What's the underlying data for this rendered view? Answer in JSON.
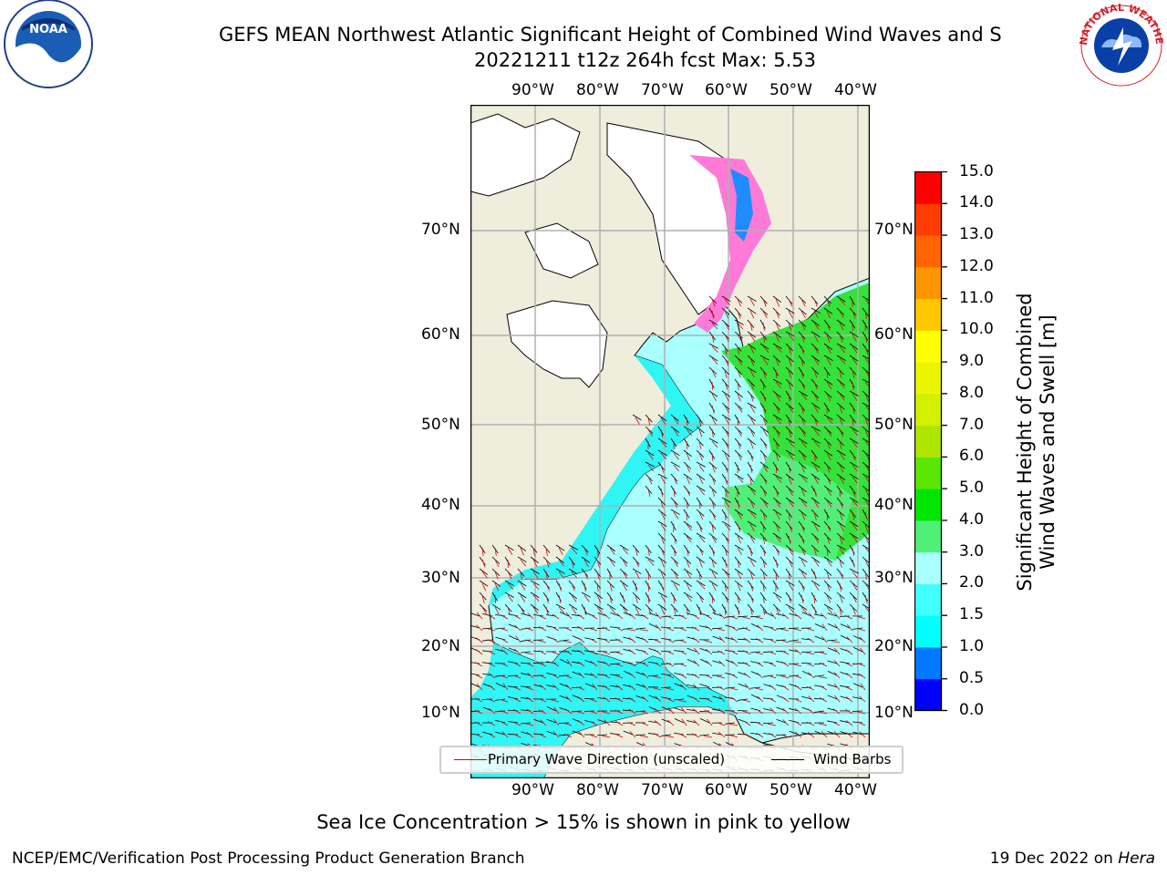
{
  "title": {
    "line1": "GEFS MEAN Northwest Atlantic Significant Height of Combined Wind Waves and S",
    "line2": "20221211 t12z 264h fcst   Max: 5.53"
  },
  "map": {
    "lon_ticks": [
      "90°W",
      "80°W",
      "70°W",
      "60°W",
      "50°W",
      "40°W"
    ],
    "lat_ticks": [
      "70°N",
      "60°N",
      "50°N",
      "40°N",
      "30°N",
      "20°N",
      "10°N"
    ],
    "colors": {
      "land": "#efeddc",
      "ice_free_unfilled": "#ffffff",
      "gridline": "#b0b0b0"
    }
  },
  "legend": {
    "primary_wave_direction": "Primary Wave Direction (unscaled)",
    "wind_barbs": "Wind Barbs"
  },
  "colorbar": {
    "label_line1": "Significant Height of Combined",
    "label_line2": "Wind Waves and Swell [m]",
    "ticks": [
      "0.0",
      "0.5",
      "1.0",
      "1.5",
      "2.0",
      "3.0",
      "4.0",
      "5.0",
      "6.0",
      "7.0",
      "8.0",
      "9.0",
      "10.0",
      "11.0",
      "12.0",
      "13.0",
      "14.0",
      "15.0"
    ],
    "colors": [
      "#0000ff",
      "#0078ff",
      "#00ffff",
      "#41ffff",
      "#aaffff",
      "#50f078",
      "#00e600",
      "#5ae600",
      "#afe600",
      "#d2f000",
      "#ebf500",
      "#ffff00",
      "#ffc800",
      "#ff9600",
      "#ff6400",
      "#ff3c00",
      "#ff0000"
    ]
  },
  "footer": {
    "note": "Sea Ice Concentration > 15% is shown in pink to yellow",
    "credit_left": "NCEP/EMC/Verification Post Processing Product Generation Branch",
    "credit_date": "19 Dec 2022 on ",
    "credit_host": "Hera"
  },
  "logos": {
    "noaa_text": "NOAA",
    "nws_ring_text": "NATIONAL WEATHER SERVICE"
  }
}
